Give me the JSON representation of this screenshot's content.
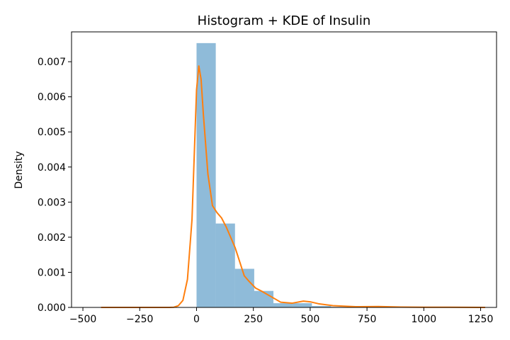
{
  "chart_data": {
    "type": "bar",
    "title": "Histogram + KDE of Insulin",
    "xlabel": "",
    "ylabel": "Density",
    "xlim": [
      -550,
      1320
    ],
    "ylim": [
      0,
      0.00785
    ],
    "x_ticks": [
      -500,
      -250,
      0,
      250,
      500,
      750,
      1000,
      1250
    ],
    "x_tick_labels": [
      "−500",
      "−250",
      "0",
      "250",
      "500",
      "750",
      "1000",
      "1250"
    ],
    "y_ticks": [
      0,
      0.001,
      0.002,
      0.003,
      0.004,
      0.005,
      0.006,
      0.007
    ],
    "y_tick_labels": [
      "0.000",
      "0.001",
      "0.002",
      "0.003",
      "0.004",
      "0.005",
      "0.006",
      "0.007"
    ],
    "grid": false,
    "legend": "none",
    "colors": {
      "histogram": "#1f77b4",
      "histogram_opacity": 0.5,
      "kde": "#ff7f0e"
    },
    "series": [
      {
        "type": "histogram",
        "bin_edges": [
          0,
          84.6,
          169.2,
          253.8,
          338.4,
          423,
          507.6,
          592.2,
          676.8,
          761.4,
          846
        ],
        "values": [
          0.00753,
          0.00239,
          0.0011,
          0.00047,
          0.00012,
          0.00012,
          4e-05,
          1.5e-05,
          1e-05,
          1e-05
        ]
      },
      {
        "type": "kde",
        "x": [
          -420,
          -200,
          -120,
          -100,
          -80,
          -60,
          -40,
          -20,
          0,
          10,
          20,
          30,
          50,
          70,
          90,
          110,
          130,
          150,
          170,
          190,
          210,
          230,
          260,
          290,
          330,
          370,
          420,
          470,
          500,
          540,
          600,
          700,
          800,
          900,
          1000,
          1100,
          1270
        ],
        "y": [
          0,
          0,
          0,
          5e-06,
          5e-05,
          0.0002,
          0.0008,
          0.0025,
          0.0062,
          0.00688,
          0.0065,
          0.0055,
          0.0038,
          0.0029,
          0.0027,
          0.00255,
          0.0023,
          0.002,
          0.0017,
          0.0013,
          0.0009,
          0.00075,
          0.00055,
          0.00045,
          0.0003,
          0.00015,
          0.00012,
          0.00018,
          0.00016,
          0.0001,
          5e-05,
          2e-05,
          2.5e-05,
          1e-05,
          5e-06,
          5e-06,
          0
        ]
      }
    ]
  }
}
